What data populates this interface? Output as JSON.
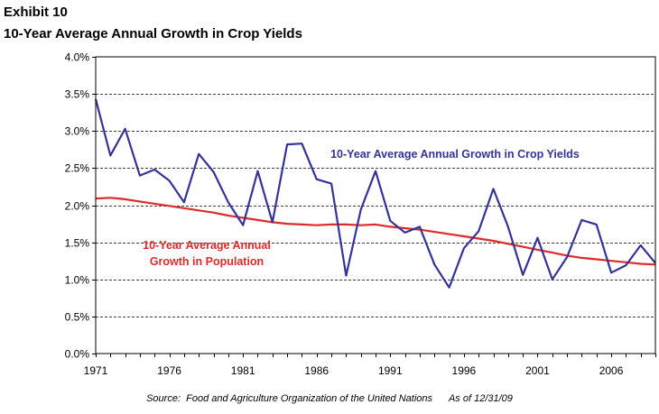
{
  "header": {
    "exhibit": "Exhibit 10",
    "title": "10-Year Average Annual Growth in Crop Yields"
  },
  "source_note": "Source:  Food and Agriculture Organization of the United Nations      As of 12/31/09",
  "chart_data": {
    "type": "line",
    "title": "10-Year Average Annual Growth in Crop Yields",
    "xlabel": "",
    "ylabel": "",
    "xlim": [
      1971,
      2009
    ],
    "ylim": [
      0,
      4.0
    ],
    "grid": "horizontal dashed",
    "x_ticks": [
      "1971",
      "1976",
      "1981",
      "1986",
      "1991",
      "1996",
      "2001",
      "2006"
    ],
    "y_ticks": [
      "0.0%",
      "0.5%",
      "1.0%",
      "1.5%",
      "2.0%",
      "2.5%",
      "3.0%",
      "3.5%",
      "4.0%"
    ],
    "x": [
      1971,
      1972,
      1973,
      1974,
      1975,
      1976,
      1977,
      1978,
      1979,
      1980,
      1981,
      1982,
      1983,
      1984,
      1985,
      1986,
      1987,
      1988,
      1989,
      1990,
      1991,
      1992,
      1993,
      1994,
      1995,
      1996,
      1997,
      1998,
      1999,
      2000,
      2001,
      2002,
      2003,
      2004,
      2005,
      2006,
      2007,
      2008,
      2009
    ],
    "series": [
      {
        "name": "10-Year Average Annual Growth in Crop Yields",
        "color": "#333399",
        "label_lines": [
          "10-Year Average Annual Growth in Crop Yields"
        ],
        "values": [
          3.43,
          2.67,
          3.03,
          2.4,
          2.48,
          2.33,
          2.04,
          2.69,
          2.45,
          2.04,
          1.73,
          2.46,
          1.77,
          2.82,
          2.83,
          2.35,
          2.29,
          1.05,
          1.94,
          2.46,
          1.79,
          1.63,
          1.71,
          1.2,
          0.89,
          1.42,
          1.65,
          2.22,
          1.71,
          1.06,
          1.56,
          1.0,
          1.3,
          1.8,
          1.74,
          1.09,
          1.19,
          1.46,
          1.22
        ]
      },
      {
        "name": "10-Year Average Annual Growth in Population",
        "color": "#dd2b2b",
        "label_lines": [
          "10-Year Average Annual",
          "Growth in Population"
        ],
        "values": [
          2.09,
          2.1,
          2.08,
          2.05,
          2.02,
          1.99,
          1.96,
          1.93,
          1.9,
          1.86,
          1.83,
          1.8,
          1.77,
          1.75,
          1.74,
          1.73,
          1.74,
          1.74,
          1.73,
          1.74,
          1.71,
          1.69,
          1.67,
          1.64,
          1.61,
          1.58,
          1.55,
          1.52,
          1.48,
          1.44,
          1.4,
          1.36,
          1.32,
          1.29,
          1.27,
          1.25,
          1.23,
          1.21,
          1.2
        ]
      }
    ]
  }
}
